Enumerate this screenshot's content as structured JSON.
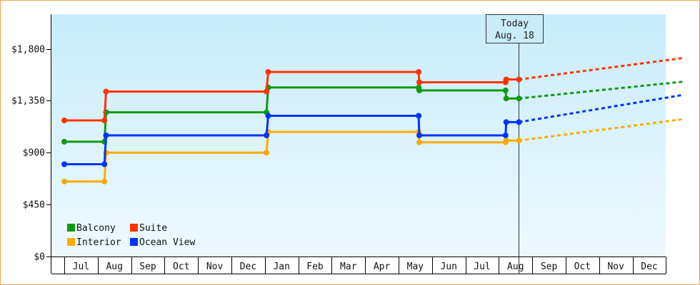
{
  "chart_data": {
    "type": "line",
    "step": true,
    "y_ticks": [
      {
        "value": 0,
        "label": "$0"
      },
      {
        "value": 450,
        "label": "$450"
      },
      {
        "value": 900,
        "label": "$900"
      },
      {
        "value": 1350,
        "label": "$1,350"
      },
      {
        "value": 1800,
        "label": "$1,800"
      }
    ],
    "ylim": [
      0,
      2100
    ],
    "xlim": [
      0,
      18.5
    ],
    "months": [
      "Jul",
      "Aug",
      "Sep",
      "Oct",
      "Nov",
      "Dec",
      "Jan",
      "Feb",
      "Mar",
      "Apr",
      "May",
      "Jun",
      "Jul",
      "Aug",
      "Sep",
      "Oct",
      "Nov",
      "Dec"
    ],
    "today": {
      "x": 13.6,
      "line1": "Today",
      "line2": "Aug. 18"
    },
    "legend": {
      "placement": "bottom-left"
    },
    "series": [
      {
        "name": "Balcony",
        "color": "#119911",
        "points": [
          [
            0,
            995
          ],
          [
            1.2,
            995
          ],
          [
            1.25,
            1250
          ],
          [
            6.05,
            1250
          ],
          [
            6.1,
            1465
          ],
          [
            10.6,
            1465
          ],
          [
            10.62,
            1440
          ],
          [
            13.2,
            1440
          ],
          [
            13.22,
            1370
          ],
          [
            13.6,
            1370
          ]
        ],
        "forecast": [
          [
            13.6,
            1370
          ],
          [
            18.5,
            1515
          ]
        ]
      },
      {
        "name": "Suite",
        "color": "#ff3300",
        "points": [
          [
            0,
            1180
          ],
          [
            1.2,
            1180
          ],
          [
            1.25,
            1430
          ],
          [
            6.05,
            1430
          ],
          [
            6.1,
            1600
          ],
          [
            10.6,
            1600
          ],
          [
            10.62,
            1510
          ],
          [
            13.2,
            1510
          ],
          [
            13.22,
            1535
          ],
          [
            13.6,
            1535
          ]
        ],
        "forecast": [
          [
            13.6,
            1535
          ],
          [
            18.5,
            1720
          ]
        ]
      },
      {
        "name": "Interior",
        "color": "#ffaa00",
        "points": [
          [
            0,
            650
          ],
          [
            1.2,
            650
          ],
          [
            1.25,
            900
          ],
          [
            6.05,
            900
          ],
          [
            6.1,
            1080
          ],
          [
            10.6,
            1080
          ],
          [
            10.62,
            990
          ],
          [
            13.2,
            990
          ],
          [
            13.22,
            1005
          ],
          [
            13.6,
            1005
          ]
        ],
        "forecast": [
          [
            13.6,
            1005
          ],
          [
            18.5,
            1190
          ]
        ]
      },
      {
        "name": "Ocean View",
        "color": "#0033ff",
        "points": [
          [
            0,
            800
          ],
          [
            1.2,
            800
          ],
          [
            1.25,
            1050
          ],
          [
            6.05,
            1050
          ],
          [
            6.1,
            1220
          ],
          [
            10.6,
            1220
          ],
          [
            10.62,
            1050
          ],
          [
            13.2,
            1050
          ],
          [
            13.22,
            1165
          ],
          [
            13.6,
            1165
          ]
        ],
        "forecast": [
          [
            13.6,
            1165
          ],
          [
            18.5,
            1400
          ]
        ]
      }
    ]
  }
}
